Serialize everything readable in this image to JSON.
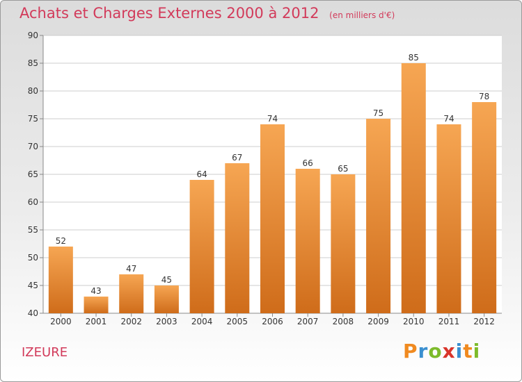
{
  "header": {
    "title": "Achats et Charges Externes 2000 à 2012",
    "subtitle": "(en milliers d'€)"
  },
  "footer": {
    "commune": "IZEURE",
    "logo": {
      "letters": [
        "P",
        "r",
        "o",
        "x",
        "i",
        "t",
        "i"
      ],
      "colors": [
        "#f08a20",
        "#3a8fd0",
        "#7dbb2b",
        "#d9342a",
        "#3a8fd0",
        "#f08a20",
        "#7dbb2b"
      ]
    }
  },
  "chart_data": {
    "type": "bar",
    "title": "Achats et Charges Externes 2000 à 2012",
    "subtitle": "(en milliers d'€)",
    "categories": [
      "2000",
      "2001",
      "2002",
      "2003",
      "2004",
      "2005",
      "2006",
      "2007",
      "2008",
      "2009",
      "2010",
      "2011",
      "2012"
    ],
    "values": [
      52,
      43,
      47,
      45,
      64,
      67,
      74,
      66,
      65,
      75,
      85,
      74,
      78
    ],
    "ylim": [
      40,
      90
    ],
    "yticks": [
      40,
      45,
      50,
      55,
      60,
      65,
      70,
      75,
      80,
      85,
      90
    ],
    "grid": true,
    "data_labels": true,
    "colors": {
      "bar_top": "#f6a653",
      "bar_bottom": "#cf6c1a",
      "grid": "#cccccc",
      "axis_text": "#333333"
    }
  }
}
